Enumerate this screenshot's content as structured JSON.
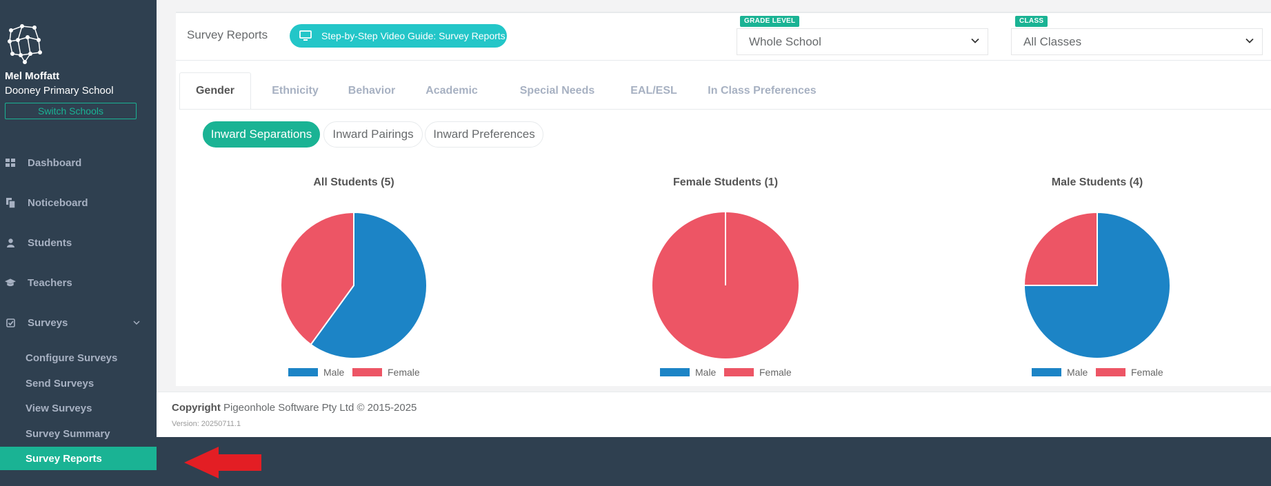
{
  "sidebar": {
    "user_name": "Mel Moffatt",
    "school_name": "Dooney Primary School",
    "switch_label": "Switch Schools",
    "nav": [
      {
        "label": "Dashboard",
        "icon": "grid-icon"
      },
      {
        "label": "Noticeboard",
        "icon": "copy-icon"
      },
      {
        "label": "Students",
        "icon": "user-icon"
      },
      {
        "label": "Teachers",
        "icon": "graduation-cap-icon"
      },
      {
        "label": "Surveys",
        "icon": "check-square-icon"
      }
    ],
    "survey_sub": [
      {
        "label": "Configure Surveys"
      },
      {
        "label": "Send Surveys"
      },
      {
        "label": "View Surveys"
      },
      {
        "label": "Survey Summary"
      },
      {
        "label": "Survey Reports",
        "active": true
      }
    ]
  },
  "header": {
    "title": "Survey Reports",
    "guide_label": "Step-by-Step Video Guide: Survey Reports",
    "grade_label": "GRADE LEVEL",
    "grade_value": "Whole School",
    "class_label": "CLASS",
    "class_value": "All Classes"
  },
  "tabs": [
    "Gender",
    "Ethnicity",
    "Behavior",
    "Academic",
    "Special Needs",
    "EAL/ESL",
    "In Class Preferences"
  ],
  "pills": [
    "Inward Separations",
    "Inward Pairings",
    "Inward Preferences"
  ],
  "colors": {
    "accent": "#1ab394",
    "male": "#1c84c6",
    "female": "#ed5565",
    "sidebar": "#2f4050"
  },
  "chart_data": [
    {
      "type": "pie",
      "title": "All Students (5)",
      "labels": [
        "Male",
        "Female"
      ],
      "values": [
        3,
        2
      ],
      "legend": "bottom"
    },
    {
      "type": "pie",
      "title": "Female Students (1)",
      "labels": [
        "Male",
        "Female"
      ],
      "values": [
        0,
        1
      ],
      "legend": "bottom"
    },
    {
      "type": "pie",
      "title": "Male Students (4)",
      "labels": [
        "Male",
        "Female"
      ],
      "values": [
        3,
        1
      ],
      "legend": "bottom"
    }
  ],
  "footer": {
    "copyright_bold": "Copyright",
    "copyright_text": " Pigeonhole Software Pty Ltd © 2015-2025",
    "version": "Version: 20250711.1"
  }
}
